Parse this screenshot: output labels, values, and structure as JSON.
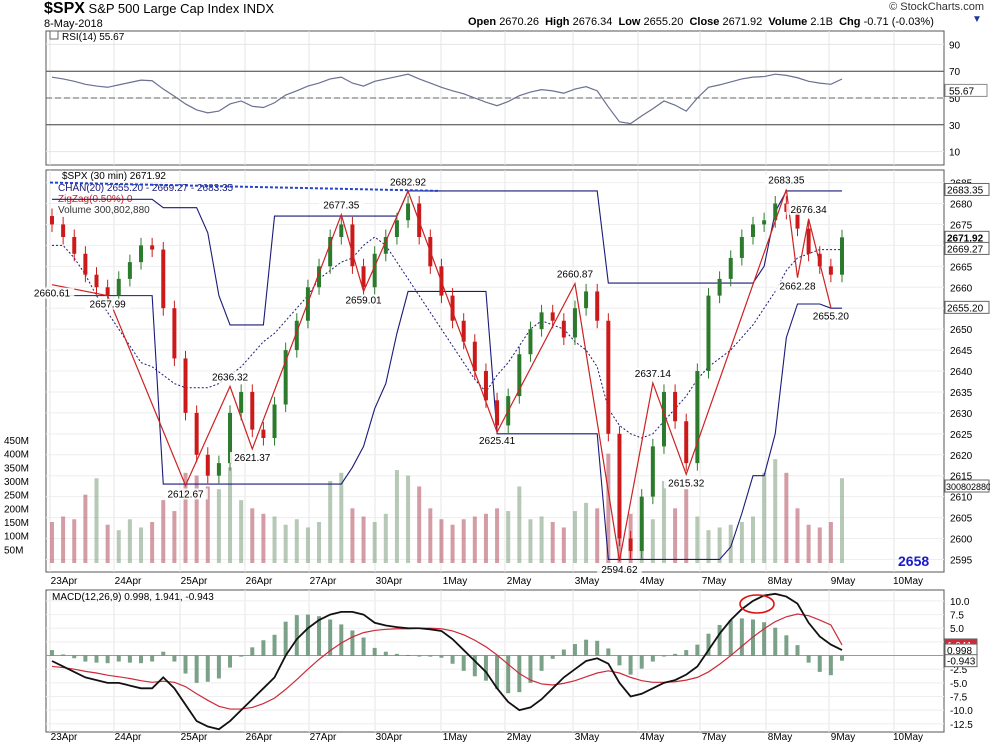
{
  "header": {
    "symbol": "$SPX",
    "name": "S&P 500 Large Cap Index",
    "exchange": "INDX",
    "date": "8-May-2018",
    "credit": "© StockCharts.com",
    "open_label": "Open",
    "open": "2670.26",
    "high_label": "High",
    "high": "2676.34",
    "low_label": "Low",
    "low": "2655.20",
    "close_label": "Close",
    "close": "2671.92",
    "volume_label": "Volume",
    "volume": "2.1B",
    "chg_label": "Chg",
    "chg": "-0.71 (-0.03%)",
    "menu_icon": "chevron-down-icon"
  },
  "rsi": {
    "label": "RSI(14) 55.67",
    "value": "55.67",
    "ticks": [
      "90",
      "70",
      "50",
      "30",
      "10"
    ],
    "color": "#6a7090",
    "overbought": 70,
    "oversold": 30,
    "ylim": [
      0,
      100
    ]
  },
  "price": {
    "label": "$SPX (30 min) 2671.92",
    "chan_label": "CHAN(20) 2655.20 - 2669.27 - 2683.35",
    "zigzag_label": "ZigZag(0.50%) 0",
    "volume_label": "Volume 300,802,880",
    "ticks": [
      "2685",
      "2680",
      "2675",
      "2670",
      "2665",
      "2660",
      "2655",
      "2650",
      "2645",
      "2640",
      "2635",
      "2630",
      "2625",
      "2620",
      "2615",
      "2610",
      "2605",
      "2600",
      "2595"
    ],
    "ylim": [
      2592,
      2688
    ],
    "tag_close": "2671.92",
    "tag_chan_upper": "2683.35",
    "tag_chan_mid": "2669.27",
    "tag_chan_lower": "2655.20",
    "tag_volume": "300802880",
    "watermark": "2658",
    "volume_ticks": [
      "450M",
      "400M",
      "350M",
      "300M",
      "250M",
      "200M",
      "150M",
      "100M",
      "50M"
    ],
    "zigzag_points": [
      {
        "label": "2660.61",
        "x": 0,
        "y": 2660.61
      },
      {
        "label": "2657.99",
        "x": 5,
        "y": 2657.99
      },
      {
        "label": "2612.67",
        "x": 12,
        "y": 2612.67
      },
      {
        "label": "2636.32",
        "x": 16,
        "y": 2636.32
      },
      {
        "label": "2621.37",
        "x": 18,
        "y": 2621.37
      },
      {
        "label": "2677.35",
        "x": 26,
        "y": 2677.35
      },
      {
        "label": "2659.01",
        "x": 28,
        "y": 2659.01
      },
      {
        "label": "2682.92",
        "x": 32,
        "y": 2682.92
      },
      {
        "label": "2625.41",
        "x": 40,
        "y": 2625.41
      },
      {
        "label": "2660.87",
        "x": 47,
        "y": 2660.87
      },
      {
        "label": "2594.62",
        "x": 51,
        "y": 2594.62
      },
      {
        "label": "2637.14",
        "x": 54,
        "y": 2637.14
      },
      {
        "label": "2615.32",
        "x": 57,
        "y": 2615.32
      },
      {
        "label": "2683.35",
        "x": 66,
        "y": 2683.35
      },
      {
        "label": "2662.28",
        "x": 67,
        "y": 2662.28
      },
      {
        "label": "2676.34",
        "x": 68,
        "y": 2676.34
      },
      {
        "label": "2655.20",
        "x": 70,
        "y": 2655.2
      }
    ],
    "chan_upper": [
      2681,
      2681,
      2681,
      2681,
      2681,
      2681,
      2681,
      2681,
      2681,
      2681,
      2679,
      2679,
      2679,
      2679,
      2673,
      2658,
      2651,
      2651,
      2651,
      2651,
      2677,
      2677,
      2677,
      2677,
      2677,
      2677,
      2677,
      2677,
      2677,
      2677,
      2677,
      2677,
      2683,
      2683,
      2683,
      2683,
      2683,
      2683,
      2683,
      2683,
      2683,
      2683,
      2683,
      2683,
      2683,
      2683,
      2683,
      2683,
      2683,
      2683,
      2661,
      2661,
      2661,
      2661,
      2661,
      2661,
      2661,
      2661,
      2661,
      2661,
      2661,
      2661,
      2661,
      2661,
      2665,
      2678,
      2683,
      2683,
      2683,
      2683,
      2683,
      2683
    ],
    "chan_lower": [
      2658,
      2658,
      2658,
      2658,
      2658,
      2658,
      2658,
      2658,
      2658,
      2658,
      2613,
      2613,
      2613,
      2613,
      2613,
      2613,
      2613,
      2613,
      2613,
      2613,
      2613,
      2613,
      2613,
      2613,
      2613,
      2613,
      2613,
      2617,
      2622,
      2631,
      2637,
      2649,
      2659,
      2659,
      2659,
      2659,
      2659,
      2659,
      2659,
      2659,
      2625,
      2625,
      2625,
      2625,
      2625,
      2625,
      2625,
      2625,
      2625,
      2625,
      2595,
      2595,
      2595,
      2595,
      2595,
      2595,
      2595,
      2595,
      2595,
      2595,
      2595,
      2598,
      2606,
      2615,
      2615,
      2625,
      2648,
      2656,
      2656,
      2656,
      2655,
      2655
    ],
    "chan_mid": [
      2670,
      2670,
      2667,
      2663,
      2658,
      2654,
      2650,
      2646,
      2642,
      2641,
      2639,
      2637,
      2636,
      2636,
      2636,
      2637,
      2639,
      2641,
      2644,
      2647,
      2649,
      2652,
      2655,
      2658,
      2662,
      2664,
      2666,
      2667,
      2670,
      2672,
      2670,
      2666,
      2662,
      2658,
      2654,
      2650,
      2646,
      2642,
      2638,
      2635,
      2639,
      2642,
      2646,
      2650,
      2652,
      2651,
      2650,
      2647,
      2645,
      2641,
      2631,
      2627,
      2625,
      2624,
      2625,
      2628,
      2631,
      2634,
      2638,
      2641,
      2643,
      2645,
      2648,
      2651,
      2655,
      2659,
      2664,
      2667,
      2668,
      2669,
      2669,
      2669
    ],
    "closes": [
      2675,
      2672,
      2668,
      2663,
      2660,
      2658,
      2662,
      2666,
      2670,
      2669,
      2655,
      2643,
      2630,
      2620,
      2615,
      2618,
      2630,
      2635,
      2626,
      2624,
      2632,
      2645,
      2652,
      2660,
      2665,
      2672,
      2675,
      2665,
      2660,
      2668,
      2672,
      2676,
      2680,
      2672,
      2665,
      2658,
      2652,
      2647,
      2640,
      2633,
      2627,
      2634,
      2644,
      2650,
      2654,
      2652,
      2648,
      2655,
      2659,
      2652,
      2625,
      2600,
      2597,
      2610,
      2622,
      2635,
      2628,
      2618,
      2640,
      2658,
      2662,
      2667,
      2672,
      2675,
      2676,
      2680,
      2678,
      2674,
      2668,
      2665,
      2663,
      2671.92
    ],
    "volumes": [
      150,
      170,
      160,
      250,
      310,
      140,
      120,
      160,
      130,
      150,
      230,
      190,
      330,
      320,
      280,
      270,
      350,
      230,
      200,
      180,
      170,
      140,
      160,
      130,
      150,
      300,
      330,
      200,
      170,
      150,
      180,
      340,
      320,
      280,
      200,
      160,
      140,
      160,
      170,
      180,
      200,
      190,
      280,
      160,
      170,
      150,
      130,
      190,
      220,
      200,
      400,
      250,
      180,
      170,
      160,
      300,
      200,
      270,
      170,
      120,
      130,
      140,
      150,
      170,
      330,
      380,
      330,
      200,
      140,
      130,
      150,
      310
    ],
    "volume_colors": [
      "#b04a5a",
      "#b04a5a",
      "#b04a5a",
      "#b04a5a",
      "#7a9a7a",
      "#b04a5a",
      "#7a9a7a",
      "#7a9a7a",
      "#7a9a7a",
      "#b04a5a",
      "#b04a5a",
      "#b04a5a",
      "#b04a5a",
      "#b04a5a",
      "#b04a5a",
      "#7a9a7a",
      "#7a9a7a",
      "#7a9a7a",
      "#b04a5a",
      "#b04a5a",
      "#7a9a7a",
      "#7a9a7a",
      "#7a9a7a",
      "#7a9a7a",
      "#7a9a7a",
      "#7a9a7a",
      "#7a9a7a",
      "#b04a5a",
      "#b04a5a",
      "#7a9a7a",
      "#7a9a7a",
      "#7a9a7a",
      "#7a9a7a",
      "#b04a5a",
      "#b04a5a",
      "#b04a5a",
      "#b04a5a",
      "#b04a5a",
      "#b04a5a",
      "#b04a5a",
      "#b04a5a",
      "#7a9a7a",
      "#7a9a7a",
      "#7a9a7a",
      "#7a9a7a",
      "#b04a5a",
      "#b04a5a",
      "#7a9a7a",
      "#7a9a7a",
      "#b04a5a",
      "#b04a5a",
      "#b04a5a",
      "#b04a5a",
      "#7a9a7a",
      "#7a9a7a",
      "#7a9a7a",
      "#b04a5a",
      "#b04a5a",
      "#7a9a7a",
      "#7a9a7a",
      "#7a9a7a",
      "#7a9a7a",
      "#7a9a7a",
      "#7a9a7a",
      "#7a9a7a",
      "#7a9a7a",
      "#b04a5a",
      "#b04a5a",
      "#b04a5a",
      "#b04a5a",
      "#b04a5a",
      "#7a9a7a"
    ],
    "up_color": "#2c7a2c",
    "down_color": "#cc1a1a",
    "chan_color": "#1a1a7a",
    "zigzag_color": "#cc2222"
  },
  "macd": {
    "label": "MACD(12,26,9) 0.998, 1.941, -0.943",
    "value_macd": "0.998",
    "value_signal": "1.941",
    "value_hist": "-0.943",
    "ticks": [
      "10.0",
      "7.5",
      "5.0",
      "2.5",
      "0.0",
      "-2.5",
      "-5.0",
      "-7.5",
      "-10.0",
      "-12.5"
    ],
    "ylim": [
      -14,
      12
    ],
    "macd_line": [
      -1,
      -2,
      -3,
      -4,
      -4.5,
      -5,
      -5,
      -5.5,
      -6,
      -6,
      -4,
      -6,
      -9,
      -12,
      -13,
      -13.5,
      -12,
      -10,
      -8,
      -6,
      -4,
      0,
      3,
      5,
      6.5,
      7.5,
      8,
      8,
      7.5,
      6,
      5.5,
      5.2,
      5,
      5,
      4.8,
      4.5,
      3,
      1,
      -1,
      -3,
      -6,
      -8.5,
      -10,
      -9.5,
      -8,
      -6,
      -4,
      -2.5,
      -1,
      -0.5,
      -1.5,
      -5,
      -7.5,
      -7,
      -6,
      -5,
      -4.5,
      -3.5,
      -2,
      1,
      4,
      6.5,
      8.5,
      10,
      11,
      11.3,
      10.8,
      9.5,
      6,
      3.5,
      2,
      0.998
    ],
    "signal_line": [
      -2,
      -2.2,
      -2.5,
      -2.9,
      -3.2,
      -3.6,
      -3.9,
      -4.2,
      -4.6,
      -4.9,
      -4.7,
      -4.9,
      -5.7,
      -7,
      -8.2,
      -9.3,
      -9.8,
      -9.8,
      -9.5,
      -8.8,
      -7.8,
      -6.2,
      -4.4,
      -2.5,
      -0.7,
      0.9,
      2.3,
      3.4,
      4.2,
      4.6,
      4.8,
      4.9,
      4.9,
      5,
      5,
      4.9,
      4.5,
      3.8,
      2.8,
      1.6,
      0.1,
      -1.6,
      -3.3,
      -4.5,
      -5.2,
      -5.4,
      -5.1,
      -4.6,
      -3.9,
      -3.2,
      -2.8,
      -3.2,
      -4,
      -4.6,
      -4.9,
      -4.9,
      -4.8,
      -4.5,
      -4,
      -3,
      -1.6,
      0,
      1.7,
      3.4,
      4.9,
      6.2,
      7.1,
      7.6,
      7.3,
      6.5,
      5.6,
      1.941
    ],
    "macd_color": "#111111",
    "signal_color": "#cc2a3a",
    "hist_color": "#5a8a6a",
    "tag_macd": "0.998",
    "tag_signal": "1.941",
    "tag_hist": "-0.943"
  },
  "x_axis": {
    "labels": [
      "23Apr",
      "24Apr",
      "25Apr",
      "26Apr",
      "27Apr",
      "30Apr",
      "1May",
      "2May",
      "3May",
      "4May",
      "7May",
      "8May",
      "9May",
      "10May"
    ]
  }
}
